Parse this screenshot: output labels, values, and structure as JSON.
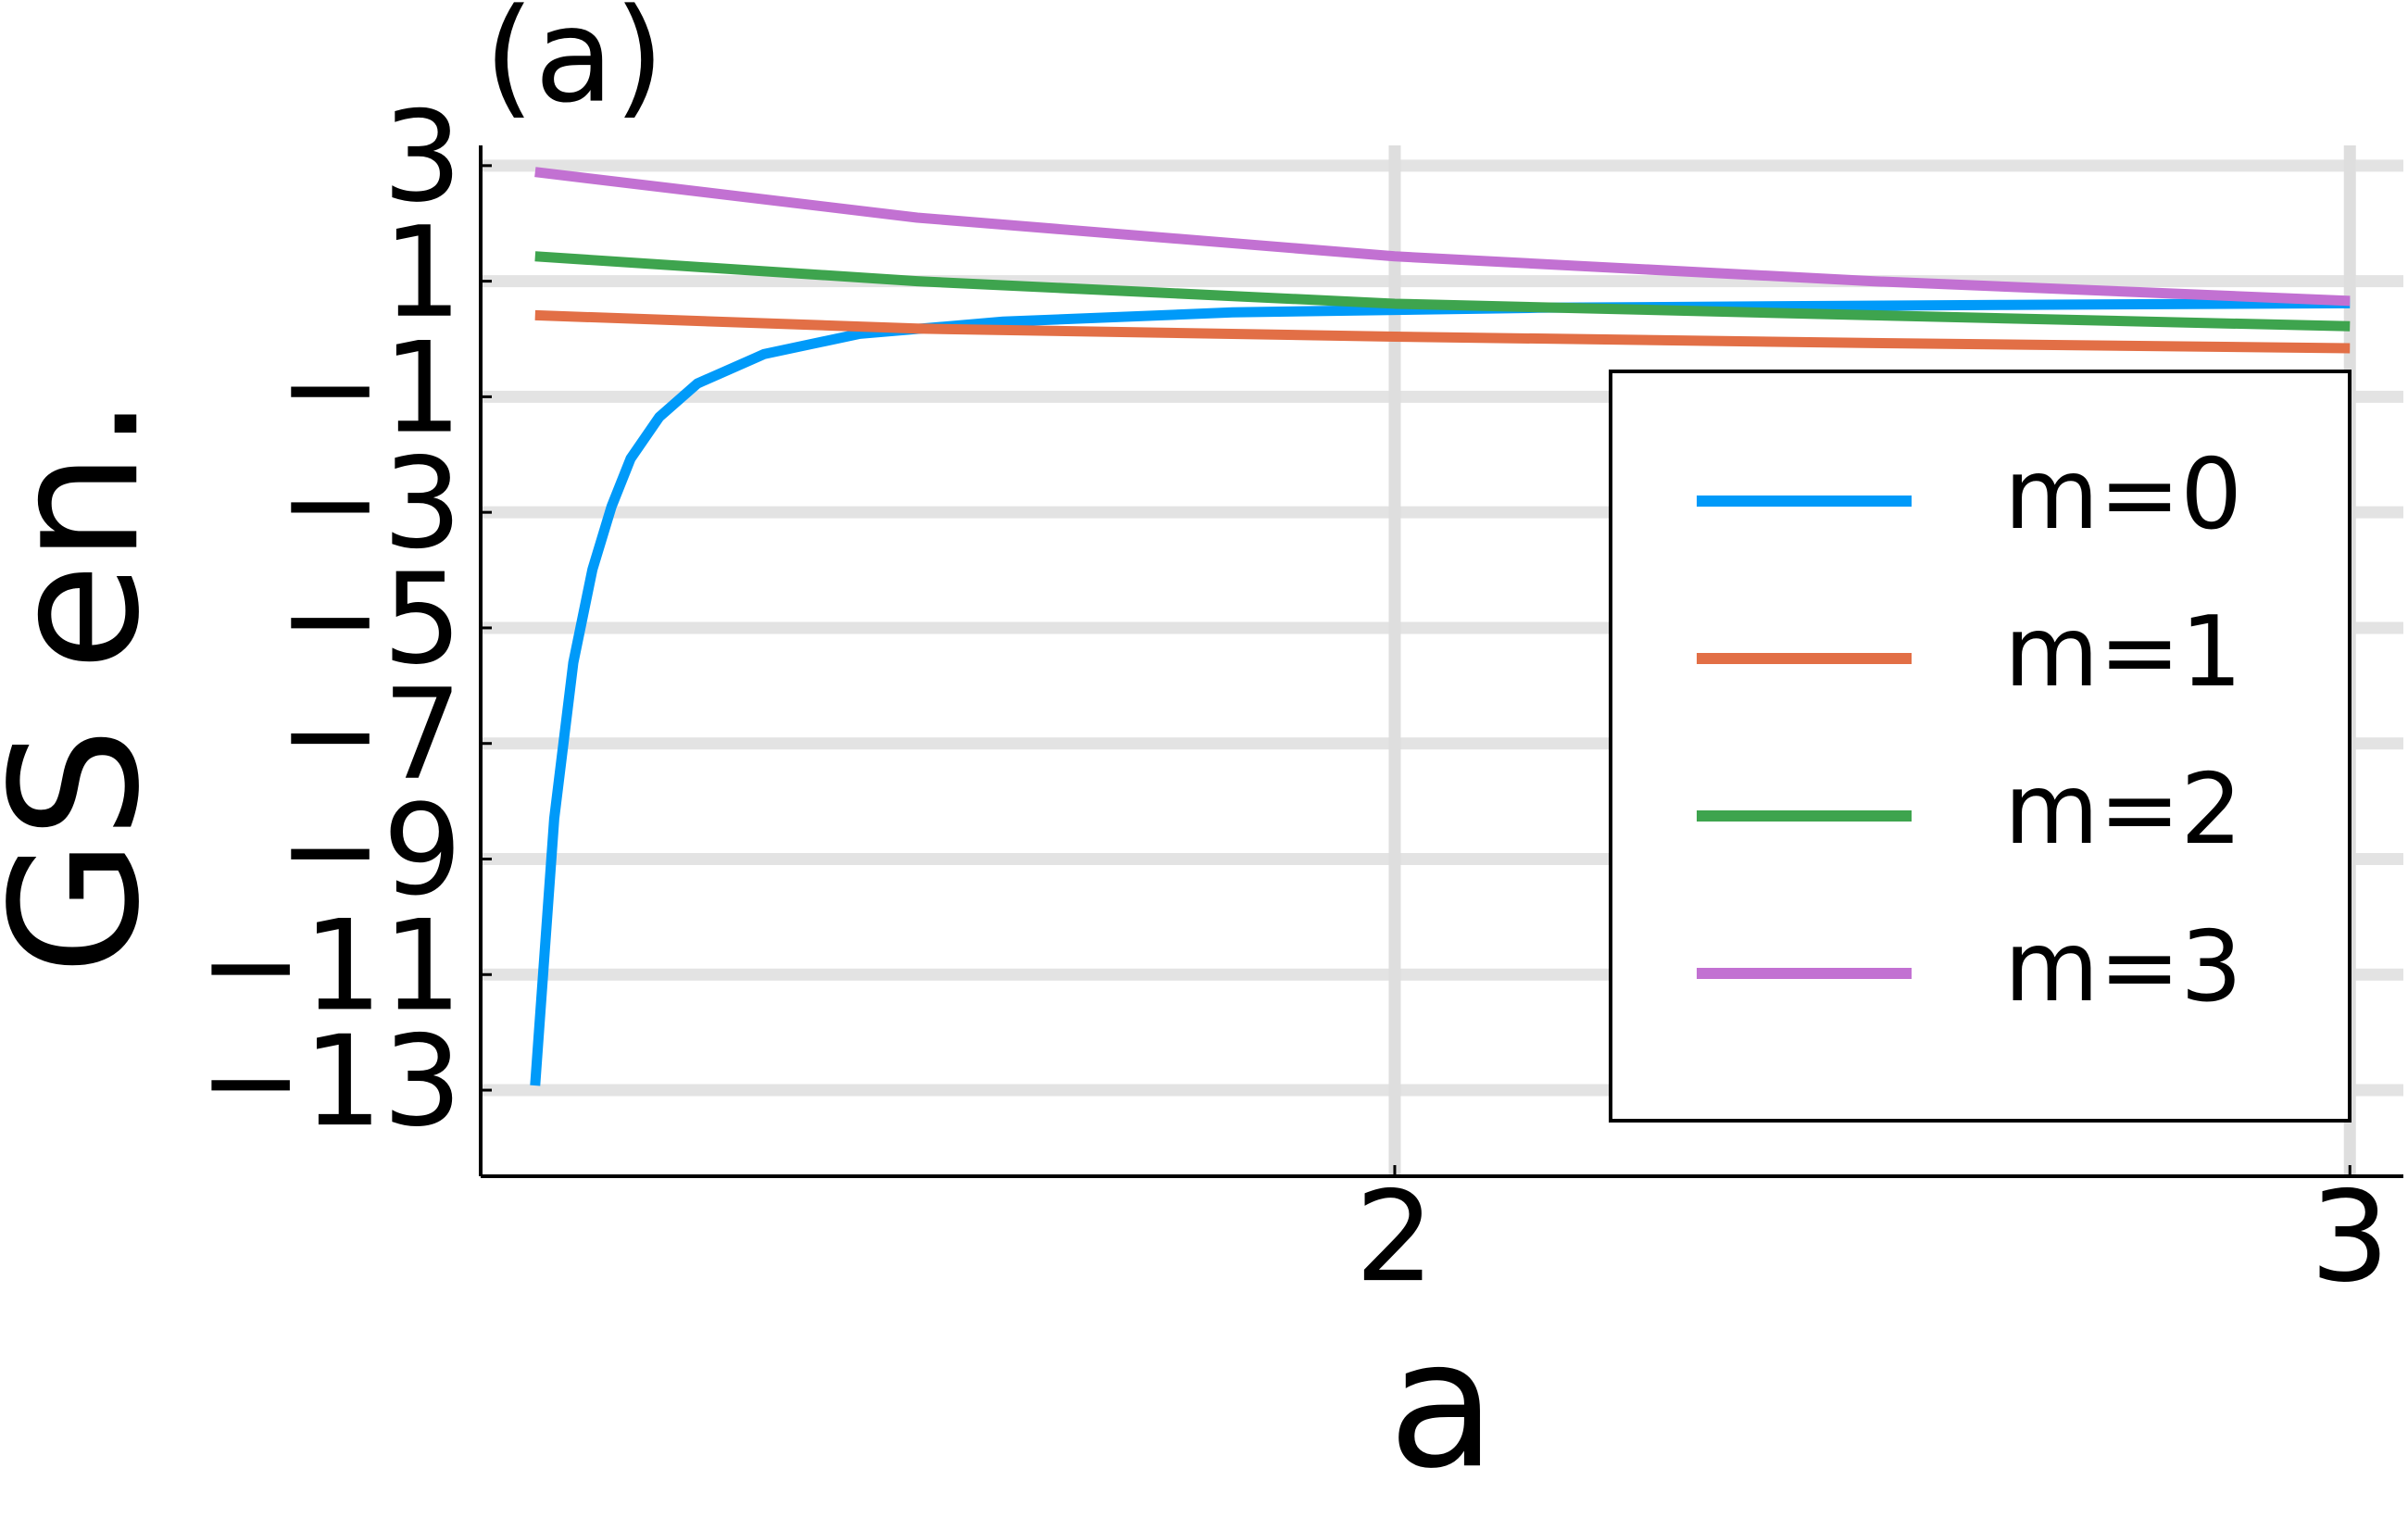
{
  "chart_data": {
    "type": "line",
    "title": "(a)",
    "x_label": "a",
    "y_label": "GS en.",
    "xlim": [
      1.043,
      3.056
    ],
    "ylim": [
      -14.49,
      3.35
    ],
    "xticks": [
      2,
      3
    ],
    "yticks": [
      3,
      1,
      {
        "value": -1,
        "label": "−1"
      },
      {
        "value": -3,
        "label": "−3"
      },
      {
        "value": -5,
        "label": "−5"
      },
      {
        "value": -7,
        "label": "−7"
      },
      {
        "value": -9,
        "label": "−9"
      },
      {
        "value": -11,
        "label": "−11"
      },
      {
        "value": -13,
        "label": "−13"
      }
    ],
    "grid": true,
    "legend": "right",
    "series": [
      {
        "name": "m=0",
        "color": "#009af9",
        "x": [
          1.1,
          1.12,
          1.14,
          1.16,
          1.18,
          1.2,
          1.23,
          1.27,
          1.34,
          1.44,
          1.59,
          1.83,
          2.15,
          2.64,
          3.0
        ],
        "values": [
          -12.92,
          -8.3,
          -5.6,
          -3.99,
          -2.9,
          -2.07,
          -1.35,
          -0.77,
          -0.26,
          0.09,
          0.3,
          0.46,
          0.54,
          0.59,
          0.62
        ]
      },
      {
        "name": "m=1",
        "color": "#e26f46",
        "x": [
          1.1,
          1.5,
          2.0,
          2.5,
          3.0
        ],
        "values": [
          0.41,
          0.18,
          0.04,
          -0.07,
          -0.16
        ]
      },
      {
        "name": "m=2",
        "color": "#3ea44e",
        "x": [
          1.1,
          1.5,
          2.0,
          2.5,
          3.0
        ],
        "values": [
          1.43,
          1.0,
          0.61,
          0.41,
          0.22
        ]
      },
      {
        "name": "m=3",
        "color": "#c271d2",
        "x": [
          1.1,
          1.5,
          2.0,
          2.5,
          3.0
        ],
        "values": [
          2.89,
          2.1,
          1.43,
          1.0,
          0.66
        ]
      }
    ]
  }
}
